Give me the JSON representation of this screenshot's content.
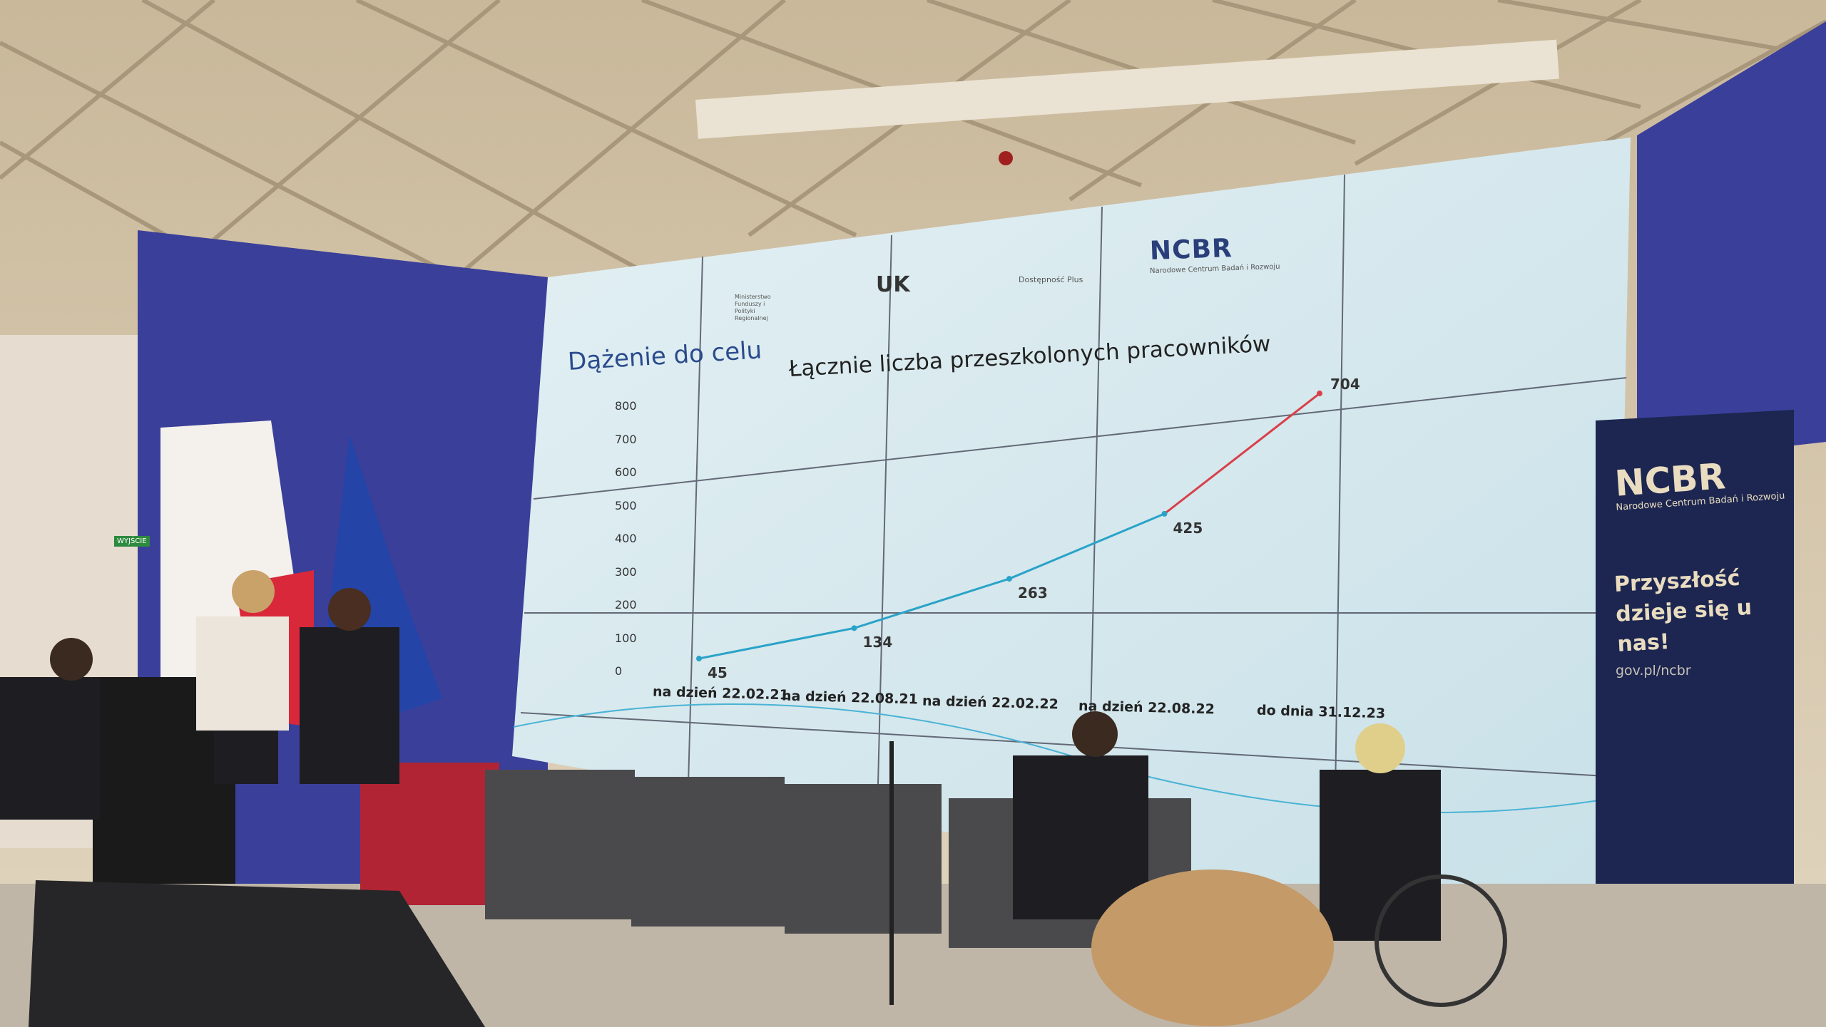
{
  "slide": {
    "title": "Dążenie do celu",
    "logos": {
      "ministry": "Ministerstwo Funduszy i Polityki Regionalnej",
      "uk": "UK",
      "dostepnosc": "Dostępność Plus",
      "ncbr": "NCBR",
      "ncbr_sub": "Narodowe Centrum Badań i Rozwoju"
    }
  },
  "chart_data": {
    "type": "line",
    "title": "Łącznie liczba przeszkolonych pracowników",
    "categories": [
      "na dzień 22.02.21",
      "na dzień 22.08.21",
      "na dzień 22.02.22",
      "na dzień 22.08.22",
      "do dnia 31.12.23"
    ],
    "values": [
      45,
      134,
      263,
      425,
      704
    ],
    "data_labels": [
      "45",
      "134",
      "263",
      "425",
      "704"
    ],
    "yticks": [
      "0",
      "100",
      "200",
      "300",
      "400",
      "500",
      "600",
      "700",
      "800"
    ],
    "ylim": [
      0,
      800
    ],
    "grid": false,
    "colors": {
      "actual": "#2aa3c8",
      "forecast": "#d9404a"
    }
  },
  "standee": {
    "brand": "NCBR",
    "subtitle": "Narodowe Centrum Badań i Rozwoju",
    "slogan": "Przyszłość dzieje się u nas!",
    "url": "gov.pl/ncbr"
  },
  "exit_sign": "WYJŚCIE",
  "colors": {
    "backdrop": "#3a3f9a",
    "screen": "#d4e8ee",
    "standee": "#1c2650"
  }
}
